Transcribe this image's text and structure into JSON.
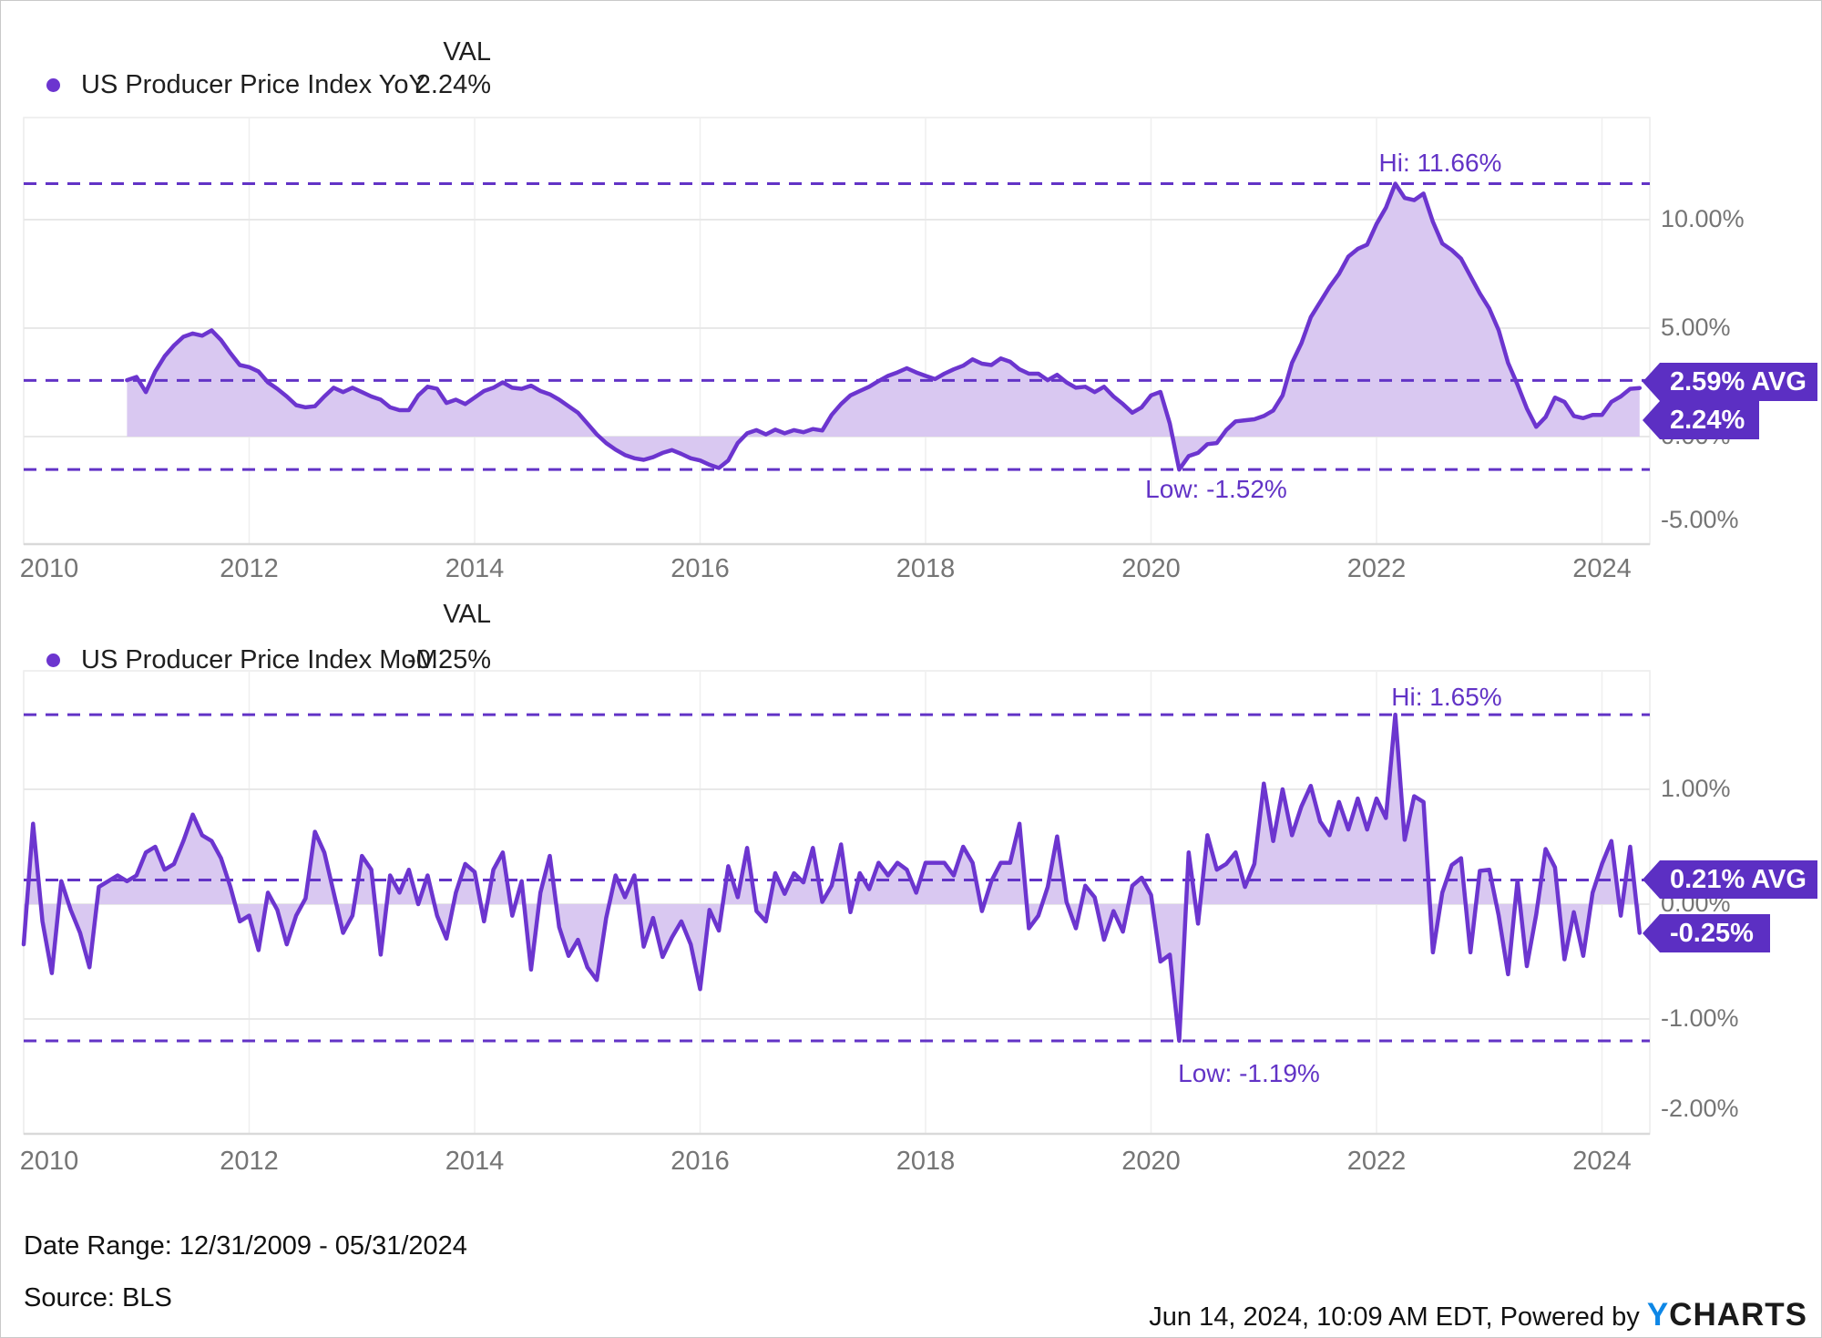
{
  "colors": {
    "line": "#6c35cf",
    "fill": "#d9c8f1",
    "dashed": "#6233c6",
    "badge": "#5c2fc3",
    "axis_label": "#757575",
    "gridline": "#e8e8e8",
    "text": "#1f1f1f",
    "logo_blue": "#0e87e6"
  },
  "footer": {
    "date_range": "Date Range: 12/31/2009 - 05/31/2024",
    "source": "Source: BLS",
    "timestamp": "Jun 14, 2024, 10:09 AM EDT",
    "powered_by": "Powered by",
    "logo_y": "Y",
    "logo_rest": "CHARTS"
  },
  "chart_data": [
    {
      "type": "area",
      "title": "US Producer Price Index YoY",
      "legend": {
        "label": "US Producer Price Index YoY",
        "val_header": "VAL",
        "val": "2.24%"
      },
      "annotations": {
        "hi_label": "Hi: 11.66%",
        "low_label": "Low: -1.52%",
        "avg_badge": "2.59% AVG",
        "value_badge": "2.24%",
        "hi_value": 11.66,
        "low_value": -1.52,
        "avg_value": 2.59,
        "last_value": 2.24
      },
      "x_ticks": [
        "2010",
        "2012",
        "2014",
        "2016",
        "2018",
        "2020",
        "2022",
        "2024"
      ],
      "y_ticks": [
        "10.00%",
        "5.00%",
        "0.00%",
        "-5.00%"
      ],
      "y_tick_values": [
        10,
        5,
        0,
        -5
      ],
      "ylim": [
        -5,
        14.7
      ],
      "grid": true,
      "legend_position": "top-left",
      "frequency": "monthly",
      "first_point": "2010-12-31",
      "last_point": "2024-05-31",
      "values": [
        2.6,
        2.75,
        2.05,
        3.0,
        3.7,
        4.2,
        4.6,
        4.75,
        4.65,
        4.9,
        4.45,
        3.85,
        3.3,
        3.2,
        3.0,
        2.5,
        2.2,
        1.85,
        1.45,
        1.35,
        1.4,
        1.85,
        2.25,
        2.05,
        2.25,
        2.05,
        1.85,
        1.7,
        1.35,
        1.22,
        1.22,
        1.9,
        2.3,
        2.2,
        1.55,
        1.7,
        1.5,
        1.8,
        2.1,
        2.25,
        2.5,
        2.25,
        2.2,
        2.35,
        2.1,
        1.95,
        1.7,
        1.4,
        1.1,
        0.6,
        0.1,
        -0.3,
        -0.6,
        -0.85,
        -1.0,
        -1.07,
        -0.95,
        -0.75,
        -0.62,
        -0.8,
        -1.0,
        -1.1,
        -1.3,
        -1.45,
        -1.1,
        -0.3,
        0.15,
        0.3,
        0.1,
        0.32,
        0.15,
        0.3,
        0.2,
        0.35,
        0.28,
        1.0,
        1.5,
        1.9,
        2.1,
        2.3,
        2.56,
        2.8,
        2.96,
        3.15,
        2.96,
        2.8,
        2.65,
        2.9,
        3.1,
        3.27,
        3.56,
        3.36,
        3.3,
        3.6,
        3.45,
        3.1,
        2.9,
        2.9,
        2.6,
        2.85,
        2.5,
        2.25,
        2.3,
        2.05,
        2.3,
        1.85,
        1.5,
        1.1,
        1.35,
        1.9,
        2.06,
        0.6,
        -1.52,
        -0.9,
        -0.75,
        -0.35,
        -0.3,
        0.3,
        0.7,
        0.75,
        0.8,
        0.95,
        1.2,
        1.9,
        3.4,
        4.3,
        5.5,
        6.2,
        6.9,
        7.5,
        8.3,
        8.65,
        8.85,
        9.8,
        10.55,
        11.66,
        11.0,
        10.9,
        11.2,
        9.9,
        8.9,
        8.6,
        8.2,
        7.4,
        6.6,
        5.9,
        4.9,
        3.4,
        2.4,
        1.3,
        0.45,
        0.9,
        1.8,
        1.6,
        0.95,
        0.85,
        1.0,
        1.0,
        1.6,
        1.85,
        2.2,
        2.24
      ]
    },
    {
      "type": "area",
      "title": "US Producer Price Index MoM",
      "legend": {
        "label": "US Producer Price Index MoM",
        "val_header": "VAL",
        "val": "-0.25%"
      },
      "annotations": {
        "hi_label": "Hi: 1.65%",
        "low_label": "Low: -1.19%",
        "avg_badge": "0.21% AVG",
        "value_badge": "-0.25%",
        "hi_value": 1.65,
        "low_value": -1.19,
        "avg_value": 0.21,
        "last_value": -0.25
      },
      "x_ticks": [
        "2010",
        "2012",
        "2014",
        "2016",
        "2018",
        "2020",
        "2022",
        "2024"
      ],
      "y_ticks": [
        "1.00%",
        "0.00%",
        "-1.00%",
        "-2.00%"
      ],
      "y_tick_values": [
        1,
        0,
        -1,
        -2
      ],
      "ylim": [
        -2.05,
        2.03
      ],
      "grid": true,
      "legend_position": "top-left",
      "frequency": "monthly",
      "first_point": "2010-01-31",
      "last_point": "2024-05-31",
      "values": [
        -0.35,
        0.7,
        -0.15,
        -0.6,
        0.2,
        -0.05,
        -0.25,
        -0.55,
        0.15,
        0.2,
        0.25,
        0.2,
        0.25,
        0.45,
        0.5,
        0.3,
        0.35,
        0.55,
        0.78,
        0.6,
        0.55,
        0.4,
        0.15,
        -0.15,
        -0.1,
        -0.4,
        0.1,
        -0.05,
        -0.35,
        -0.1,
        0.05,
        0.63,
        0.45,
        0.1,
        -0.25,
        -0.1,
        0.42,
        0.3,
        -0.44,
        0.25,
        0.1,
        0.3,
        0.0,
        0.25,
        -0.1,
        -0.3,
        0.1,
        0.35,
        0.28,
        -0.15,
        0.3,
        0.45,
        -0.1,
        0.2,
        -0.57,
        0.1,
        0.42,
        -0.2,
        -0.45,
        -0.31,
        -0.55,
        -0.66,
        -0.12,
        0.25,
        0.06,
        0.25,
        -0.37,
        -0.12,
        -0.46,
        -0.29,
        -0.15,
        -0.35,
        -0.74,
        -0.05,
        -0.23,
        0.33,
        0.06,
        0.49,
        -0.06,
        -0.15,
        0.27,
        0.09,
        0.27,
        0.19,
        0.49,
        0.02,
        0.16,
        0.52,
        -0.07,
        0.27,
        0.13,
        0.36,
        0.25,
        0.36,
        0.3,
        0.1,
        0.36,
        0.36,
        0.36,
        0.25,
        0.5,
        0.36,
        -0.06,
        0.2,
        0.36,
        0.36,
        0.7,
        -0.21,
        -0.1,
        0.15,
        0.59,
        0.02,
        -0.21,
        0.16,
        0.06,
        -0.31,
        -0.06,
        -0.24,
        0.16,
        0.23,
        0.08,
        -0.5,
        -0.44,
        -1.19,
        0.45,
        -0.17,
        0.6,
        0.3,
        0.35,
        0.45,
        0.15,
        0.35,
        1.05,
        0.55,
        1.0,
        0.6,
        0.85,
        1.03,
        0.72,
        0.6,
        0.89,
        0.65,
        0.92,
        0.65,
        0.92,
        0.75,
        1.65,
        0.56,
        0.94,
        0.89,
        -0.42,
        0.1,
        0.34,
        0.4,
        -0.42,
        0.29,
        0.3,
        -0.1,
        -0.61,
        0.2,
        -0.54,
        -0.09,
        0.48,
        0.32,
        -0.48,
        -0.07,
        -0.45,
        0.1,
        0.35,
        0.55,
        -0.1,
        0.5,
        -0.25
      ]
    }
  ]
}
